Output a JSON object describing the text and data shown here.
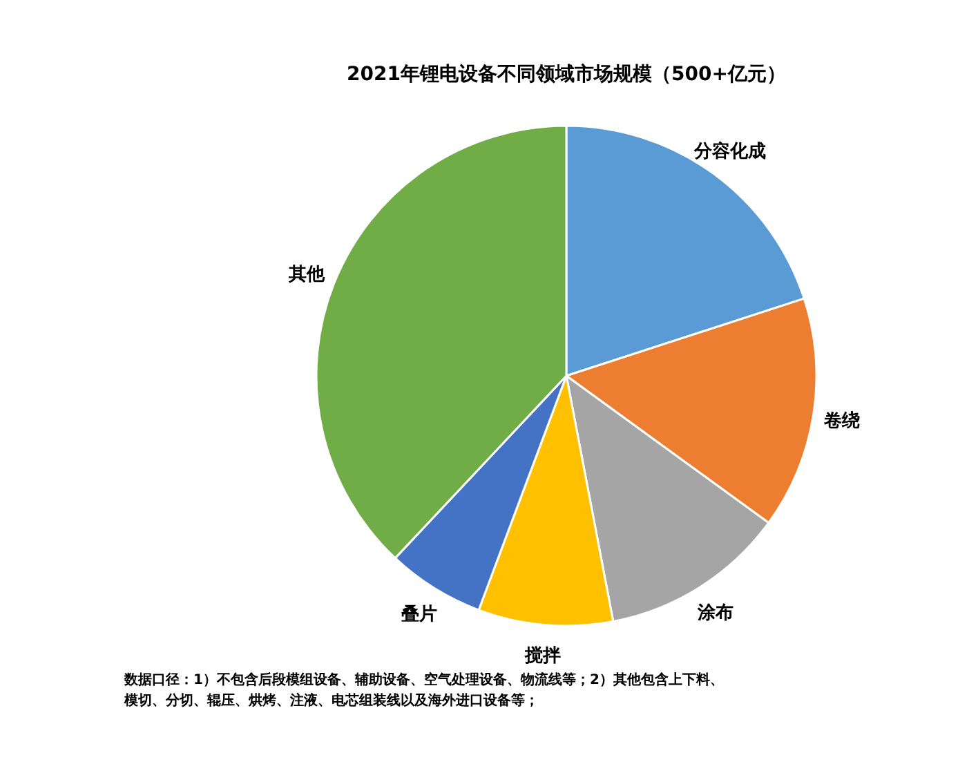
{
  "chart_data": {
    "type": "pie",
    "title": "2021年锂电设备不同领域市场规模（500+亿元）",
    "categories": [
      "分容化成",
      "卷绕",
      "涂布",
      "搅拌",
      "叠片",
      "其他"
    ],
    "values": [
      20,
      15,
      12,
      8.7,
      6.3,
      38
    ],
    "colors": [
      "#5b9bd5",
      "#ed7d31",
      "#a5a5a5",
      "#ffc000",
      "#4472c4",
      "#70ad47"
    ],
    "annotations": [
      "数据口径：1）不包含后段模组设备、辅助设备、空气处理设备、物流线等；2）其他包含上下料、模切、分切、辊压、烘烤、注液、电芯组装线以及海外进口设备等；"
    ]
  }
}
